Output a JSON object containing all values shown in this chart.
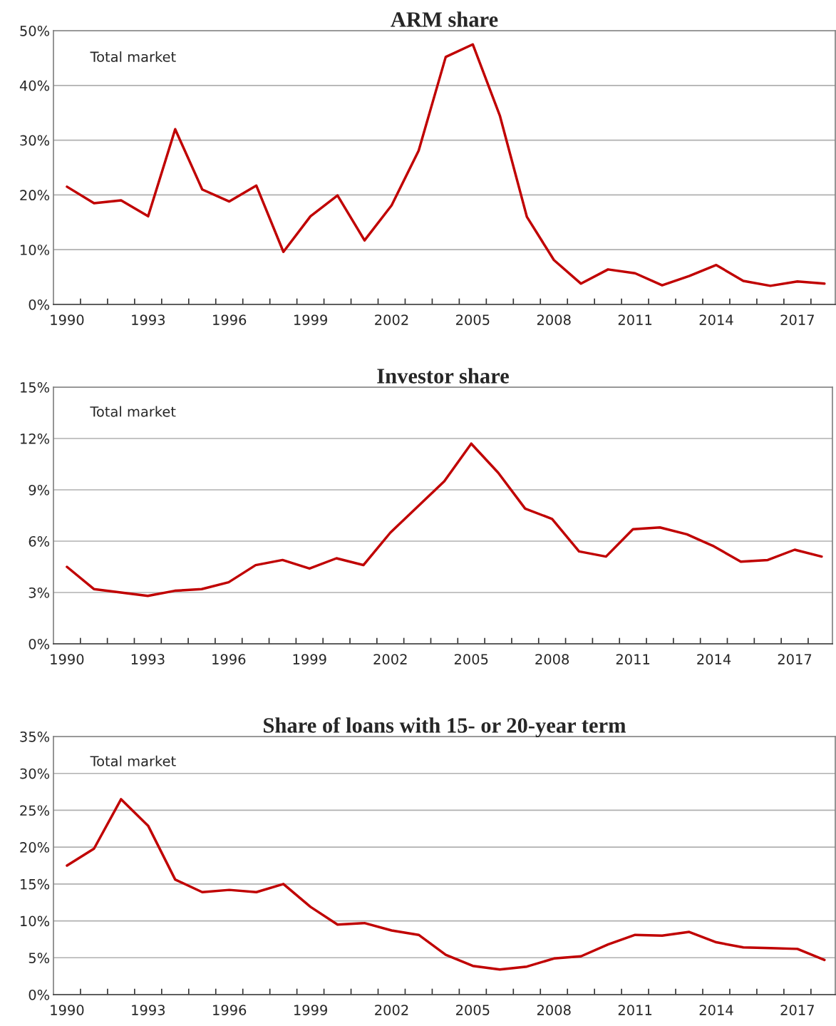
{
  "chart_data": [
    {
      "type": "line",
      "title": "ARM share",
      "annotations": [
        "Total market"
      ],
      "grid": "y",
      "marker": "none",
      "line_style": "solid",
      "xlim": [
        1989.5,
        2018.4
      ],
      "ylim": [
        0,
        50
      ],
      "x": [
        1990,
        1991,
        1992,
        1993,
        1994,
        1995,
        1996,
        1997,
        1998,
        1999,
        2000,
        2001,
        2002,
        2003,
        2004,
        2005,
        2006,
        2007,
        2008,
        2009,
        2010,
        2011,
        2012,
        2013,
        2014,
        2015,
        2016,
        2017,
        2018
      ],
      "xticks": [
        1990,
        {
          "value": 1990.5,
          "label": null
        },
        {
          "value": 1991.5,
          "label": null
        },
        {
          "value": 1992.5,
          "label": null
        },
        1993,
        {
          "value": 1993.5,
          "label": null
        },
        {
          "value": 1994.5,
          "label": null
        },
        {
          "value": 1995.5,
          "label": null
        },
        1996,
        {
          "value": 1996.5,
          "label": null
        },
        {
          "value": 1997.5,
          "label": null
        },
        {
          "value": 1998.5,
          "label": null
        },
        1999,
        {
          "value": 1999.5,
          "label": null
        },
        {
          "value": 2000.5,
          "label": null
        },
        {
          "value": 2001.5,
          "label": null
        },
        2002,
        {
          "value": 2002.5,
          "label": null
        },
        {
          "value": 2003.5,
          "label": null
        },
        {
          "value": 2004.5,
          "label": null
        },
        2005,
        {
          "value": 2005.5,
          "label": null
        },
        {
          "value": 2006.5,
          "label": null
        },
        {
          "value": 2007.5,
          "label": null
        },
        2008,
        {
          "value": 2008.5,
          "label": null
        },
        {
          "value": 2009.5,
          "label": null
        },
        {
          "value": 2010.5,
          "label": null
        },
        2011,
        {
          "value": 2011.5,
          "label": null
        },
        {
          "value": 2012.5,
          "label": null
        },
        {
          "value": 2013.5,
          "label": null
        },
        2014,
        {
          "value": 2014.5,
          "label": null
        },
        {
          "value": 2015.5,
          "label": null
        },
        {
          "value": 2016.5,
          "label": null
        },
        2017,
        {
          "value": 2017.5,
          "label": null
        }
      ],
      "yticks": [
        {
          "value": 0,
          "label": "0%"
        },
        {
          "value": 10,
          "label": "10%"
        },
        {
          "value": 20,
          "label": "20%"
        },
        {
          "value": 30,
          "label": "30%"
        },
        {
          "value": 40,
          "label": "40%"
        },
        {
          "value": 50,
          "label": "50%"
        }
      ],
      "series": [
        {
          "color": "#c00000",
          "values": [
            21.5,
            18.5,
            19.0,
            16.1,
            32.0,
            21.0,
            18.8,
            21.7,
            9.6,
            16.1,
            19.9,
            11.7,
            18.1,
            28.1,
            45.2,
            47.5,
            34.5,
            16.0,
            8.1,
            3.8,
            6.4,
            5.7,
            3.5,
            5.2,
            7.2,
            4.3,
            3.4,
            4.2,
            3.8
          ]
        }
      ]
    },
    {
      "type": "line",
      "title": "Investor share",
      "annotations": [
        "Total market"
      ],
      "grid": "y",
      "marker": "none",
      "line_style": "solid",
      "xlim": [
        1989.5,
        2018.4
      ],
      "ylim": [
        0,
        15
      ],
      "x": [
        1990,
        1991,
        1992,
        1993,
        1994,
        1995,
        1996,
        1997,
        1998,
        1999,
        2000,
        2001,
        2002,
        2003,
        2004,
        2005,
        2006,
        2007,
        2008,
        2009,
        2010,
        2011,
        2012,
        2013,
        2014,
        2015,
        2016,
        2017,
        2018
      ],
      "xticks": [
        1990,
        {
          "value": 1990.5,
          "label": null
        },
        {
          "value": 1991.5,
          "label": null
        },
        {
          "value": 1992.5,
          "label": null
        },
        1993,
        {
          "value": 1993.5,
          "label": null
        },
        {
          "value": 1994.5,
          "label": null
        },
        {
          "value": 1995.5,
          "label": null
        },
        1996,
        {
          "value": 1996.5,
          "label": null
        },
        {
          "value": 1997.5,
          "label": null
        },
        {
          "value": 1998.5,
          "label": null
        },
        1999,
        {
          "value": 1999.5,
          "label": null
        },
        {
          "value": 2000.5,
          "label": null
        },
        {
          "value": 2001.5,
          "label": null
        },
        2002,
        {
          "value": 2002.5,
          "label": null
        },
        {
          "value": 2003.5,
          "label": null
        },
        {
          "value": 2004.5,
          "label": null
        },
        2005,
        {
          "value": 2005.5,
          "label": null
        },
        {
          "value": 2006.5,
          "label": null
        },
        {
          "value": 2007.5,
          "label": null
        },
        2008,
        {
          "value": 2008.5,
          "label": null
        },
        {
          "value": 2009.5,
          "label": null
        },
        {
          "value": 2010.5,
          "label": null
        },
        2011,
        {
          "value": 2011.5,
          "label": null
        },
        {
          "value": 2012.5,
          "label": null
        },
        {
          "value": 2013.5,
          "label": null
        },
        2014,
        {
          "value": 2014.5,
          "label": null
        },
        {
          "value": 2015.5,
          "label": null
        },
        {
          "value": 2016.5,
          "label": null
        },
        2017,
        {
          "value": 2017.5,
          "label": null
        }
      ],
      "yticks": [
        {
          "value": 0,
          "label": "0%"
        },
        {
          "value": 3,
          "label": "3%"
        },
        {
          "value": 6,
          "label": "6%"
        },
        {
          "value": 9,
          "label": "9%"
        },
        {
          "value": 12,
          "label": "12%"
        },
        {
          "value": 15,
          "label": "15%"
        }
      ],
      "series": [
        {
          "color": "#c00000",
          "values": [
            4.5,
            3.2,
            3.0,
            2.8,
            3.1,
            3.2,
            3.6,
            4.6,
            4.9,
            4.4,
            5.0,
            4.6,
            6.5,
            8.0,
            9.5,
            11.7,
            10.0,
            7.9,
            7.3,
            5.4,
            5.1,
            6.7,
            6.8,
            6.4,
            5.7,
            4.8,
            4.9,
            5.5,
            5.1
          ]
        }
      ]
    },
    {
      "type": "line",
      "title": "Share of loans with 15- or 20-year term",
      "annotations": [
        "Total market"
      ],
      "grid": "y",
      "marker": "none",
      "line_style": "solid",
      "xlim": [
        1989.5,
        2018.4
      ],
      "ylim": [
        0,
        35
      ],
      "x": [
        1990,
        1991,
        1992,
        1993,
        1994,
        1995,
        1996,
        1997,
        1998,
        1999,
        2000,
        2001,
        2002,
        2003,
        2004,
        2005,
        2006,
        2007,
        2008,
        2009,
        2010,
        2011,
        2012,
        2013,
        2014,
        2015,
        2016,
        2017,
        2018
      ],
      "xticks": [
        1990,
        {
          "value": 1990.5,
          "label": null
        },
        {
          "value": 1991.5,
          "label": null
        },
        {
          "value": 1992.5,
          "label": null
        },
        1993,
        {
          "value": 1993.5,
          "label": null
        },
        {
          "value": 1994.5,
          "label": null
        },
        {
          "value": 1995.5,
          "label": null
        },
        1996,
        {
          "value": 1996.5,
          "label": null
        },
        {
          "value": 1997.5,
          "label": null
        },
        {
          "value": 1998.5,
          "label": null
        },
        1999,
        {
          "value": 1999.5,
          "label": null
        },
        {
          "value": 2000.5,
          "label": null
        },
        {
          "value": 2001.5,
          "label": null
        },
        2002,
        {
          "value": 2002.5,
          "label": null
        },
        {
          "value": 2003.5,
          "label": null
        },
        {
          "value": 2004.5,
          "label": null
        },
        2005,
        {
          "value": 2005.5,
          "label": null
        },
        {
          "value": 2006.5,
          "label": null
        },
        {
          "value": 2007.5,
          "label": null
        },
        2008,
        {
          "value": 2008.5,
          "label": null
        },
        {
          "value": 2009.5,
          "label": null
        },
        {
          "value": 2010.5,
          "label": null
        },
        2011,
        {
          "value": 2011.5,
          "label": null
        },
        {
          "value": 2012.5,
          "label": null
        },
        {
          "value": 2013.5,
          "label": null
        },
        2014,
        {
          "value": 2014.5,
          "label": null
        },
        {
          "value": 2015.5,
          "label": null
        },
        {
          "value": 2016.5,
          "label": null
        },
        2017,
        {
          "value": 2017.5,
          "label": null
        }
      ],
      "yticks": [
        {
          "value": 0,
          "label": "0%"
        },
        {
          "value": 5,
          "label": "5%"
        },
        {
          "value": 10,
          "label": "10%"
        },
        {
          "value": 15,
          "label": "15%"
        },
        {
          "value": 20,
          "label": "20%"
        },
        {
          "value": 25,
          "label": "25%"
        },
        {
          "value": 30,
          "label": "30%"
        },
        {
          "value": 35,
          "label": "35%"
        }
      ],
      "series": [
        {
          "color": "#c00000",
          "values": [
            17.5,
            19.8,
            26.5,
            22.9,
            15.6,
            13.9,
            14.2,
            13.9,
            15.0,
            11.9,
            9.5,
            9.7,
            8.7,
            8.1,
            5.4,
            3.9,
            3.4,
            3.8,
            4.9,
            5.2,
            6.8,
            8.1,
            8.0,
            8.5,
            7.1,
            6.4,
            6.3,
            6.2,
            4.7
          ]
        }
      ]
    }
  ]
}
